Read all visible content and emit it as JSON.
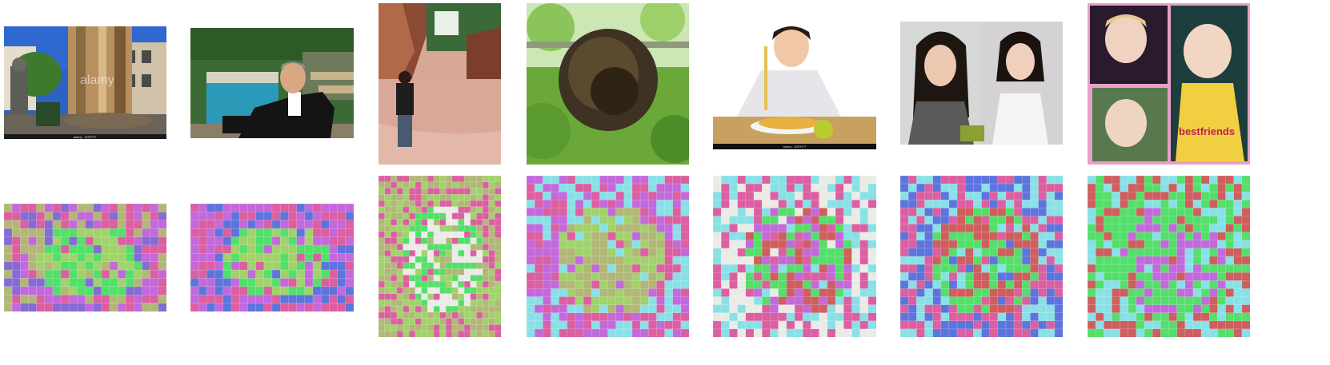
{
  "figure": {
    "photos": [
      {
        "id": "street-statue",
        "watermark": "alamy",
        "caption": "alamy - A0FP97"
      },
      {
        "id": "man-by-pool"
      },
      {
        "id": "woman-canyon"
      },
      {
        "id": "bee-swarm"
      },
      {
        "id": "boy-spaghetti",
        "caption": "alamy - A0FH77"
      },
      {
        "id": "two-women"
      },
      {
        "id": "baby-collage",
        "shirt_text": "bestfriends"
      }
    ],
    "masks": [
      {
        "id": "street-statue"
      },
      {
        "id": "man-by-pool"
      },
      {
        "id": "woman-canyon"
      },
      {
        "id": "bee-swarm"
      },
      {
        "id": "boy-spaghetti"
      },
      {
        "id": "two-women"
      },
      {
        "id": "baby-collage"
      }
    ]
  },
  "colors": {
    "mask_palette": [
      "#b648d4",
      "#2ed84a",
      "#3a56d6",
      "#e6e6e0",
      "#d43c8c",
      "#6edbe0",
      "#a0a858",
      "#c43a3a",
      "#8cc84a",
      "#6a4acb"
    ]
  }
}
